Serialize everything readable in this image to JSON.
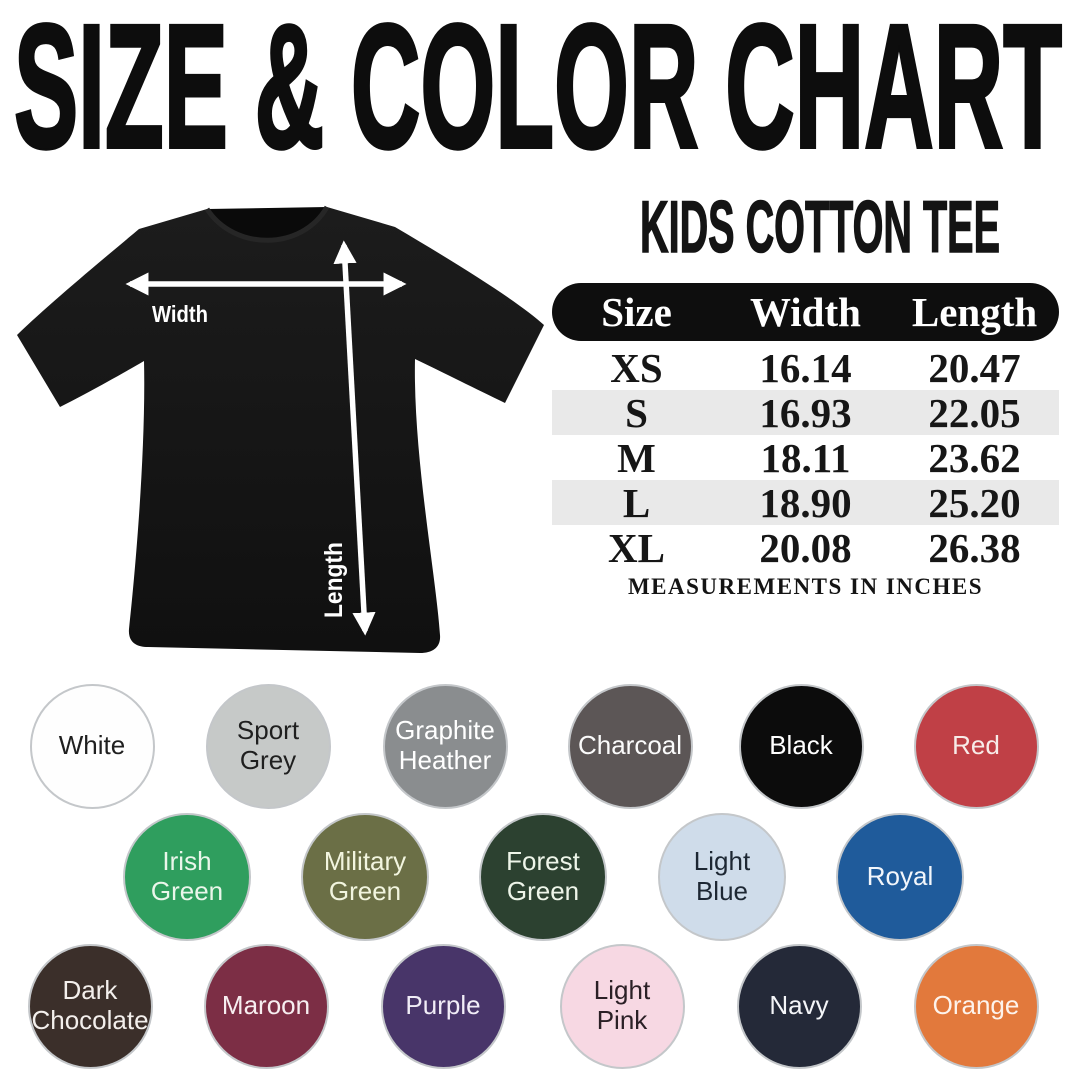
{
  "title": "SIZE & COLOR CHART",
  "product": {
    "subtitle": "KIDS COTTON TEE"
  },
  "tee_diagram": {
    "width_label": "Width",
    "length_label": "Length",
    "shirt_color": "#161616",
    "arrow_color": "#ffffff"
  },
  "size_table": {
    "headers": [
      "Size",
      "Width",
      "Length"
    ],
    "rows": [
      {
        "size": "XS",
        "width": "16.14",
        "length": "20.47"
      },
      {
        "size": "S",
        "width": "16.93",
        "length": "22.05"
      },
      {
        "size": "M",
        "width": "18.11",
        "length": "23.62"
      },
      {
        "size": "L",
        "width": "18.90",
        "length": "25.20"
      },
      {
        "size": "XL",
        "width": "20.08",
        "length": "26.38"
      }
    ],
    "note": "MEASUREMENTS IN INCHES",
    "header_bg": "#0e0e0e",
    "stripe_bg": "#e9e9e9"
  },
  "color_palette": {
    "rows": [
      [
        {
          "label": "White",
          "hex": "#fefefe",
          "text": "#1f1f1f"
        },
        {
          "label": "Sport\nGrey",
          "hex": "#c6c9c8",
          "text": "#1f1f1f"
        },
        {
          "label": "Graphite\nHeather",
          "hex": "#8a8d8f",
          "text": "#ffffff"
        },
        {
          "label": "Charcoal",
          "hex": "#5c5656",
          "text": "#fbfbfb"
        },
        {
          "label": "Black",
          "hex": "#0c0c0c",
          "text": "#ffffff"
        },
        {
          "label": "Red",
          "hex": "#c04046",
          "text": "#f7ebe8"
        }
      ],
      [
        {
          "label": "Irish\nGreen",
          "hex": "#2f9e5e",
          "text": "#eaf6ea"
        },
        {
          "label": "Military\nGreen",
          "hex": "#6b6f46",
          "text": "#f2f5df"
        },
        {
          "label": "Forest\nGreen",
          "hex": "#2c4130",
          "text": "#eef5e9"
        },
        {
          "label": "Light\nBlue",
          "hex": "#cfdcea",
          "text": "#1d2733"
        },
        {
          "label": "Royal",
          "hex": "#1f5b9b",
          "text": "#f2f6fb"
        }
      ],
      [
        {
          "label": "Dark\nChocolate",
          "hex": "#3b2f2a",
          "text": "#f3efec"
        },
        {
          "label": "Maroon",
          "hex": "#7c2e45",
          "text": "#f7eef0"
        },
        {
          "label": "Purple",
          "hex": "#483569",
          "text": "#f1edf7"
        },
        {
          "label": "Light\nPink",
          "hex": "#f7d8e3",
          "text": "#2b2026"
        },
        {
          "label": "Navy",
          "hex": "#242938",
          "text": "#f4f5f8"
        },
        {
          "label": "Orange",
          "hex": "#e2793c",
          "text": "#fdf3ec"
        }
      ]
    ]
  }
}
